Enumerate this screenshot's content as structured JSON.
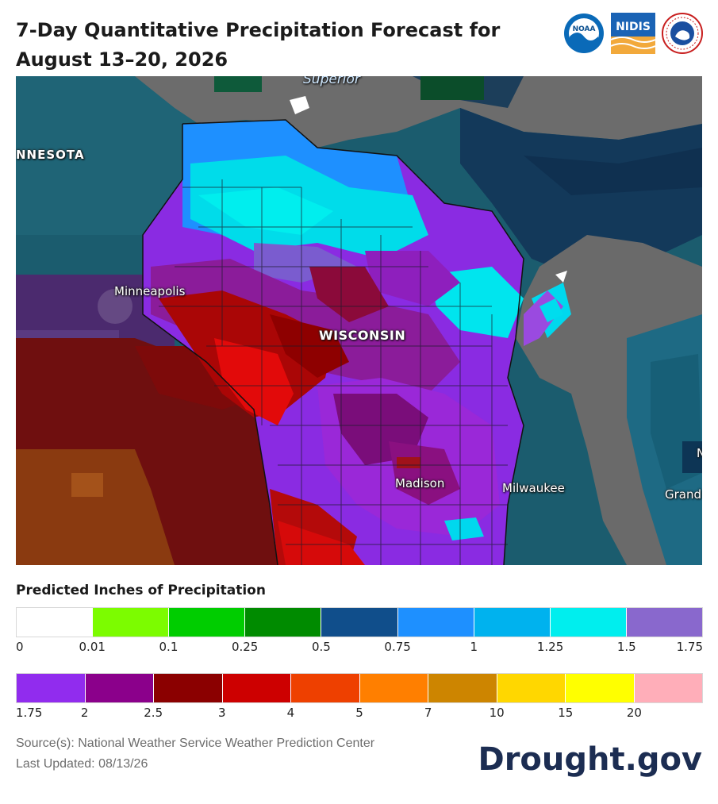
{
  "title": "7-Day Quantitative Precipitation Forecast for August 13–20, 2026",
  "logos": {
    "noaa": "NOAA",
    "nidis": "NIDIS",
    "nws": "NATIONAL WEATHER SERVICE"
  },
  "map": {
    "labels": {
      "superior": "Superior",
      "minnesota": "NNESOTA",
      "minneapolis": "Minneapolis",
      "wisconsin": "WISCONSIN",
      "madison": "Madison",
      "milwaukee": "Milwaukee",
      "grand": "Grand",
      "edge_n": "N"
    }
  },
  "legend": {
    "title": "Predicted Inches of Precipitation",
    "row1": {
      "colors": [
        "#ffffff",
        "#7cfc00",
        "#00cd00",
        "#008b00",
        "#104e8b",
        "#1e90ff",
        "#00b2ee",
        "#00eeee",
        "#8968cd"
      ],
      "ticks": [
        "0",
        "0.01",
        "0.1",
        "0.25",
        "0.5",
        "0.75",
        "1",
        "1.25",
        "1.5",
        "1.75"
      ]
    },
    "row2": {
      "colors": [
        "#912cee",
        "#8b008b",
        "#8b0000",
        "#cd0000",
        "#ee4000",
        "#ff7f00",
        "#cd8500",
        "#ffd700",
        "#ffff00",
        "#ffaeb9"
      ],
      "ticks": [
        "1.75",
        "2",
        "2.5",
        "3",
        "4",
        "5",
        "7",
        "10",
        "15",
        "20"
      ]
    }
  },
  "source": "Source(s): National Weather Service Weather Prediction Center",
  "updated": "Last Updated: 08/13/26",
  "brand": "Drought.gov"
}
